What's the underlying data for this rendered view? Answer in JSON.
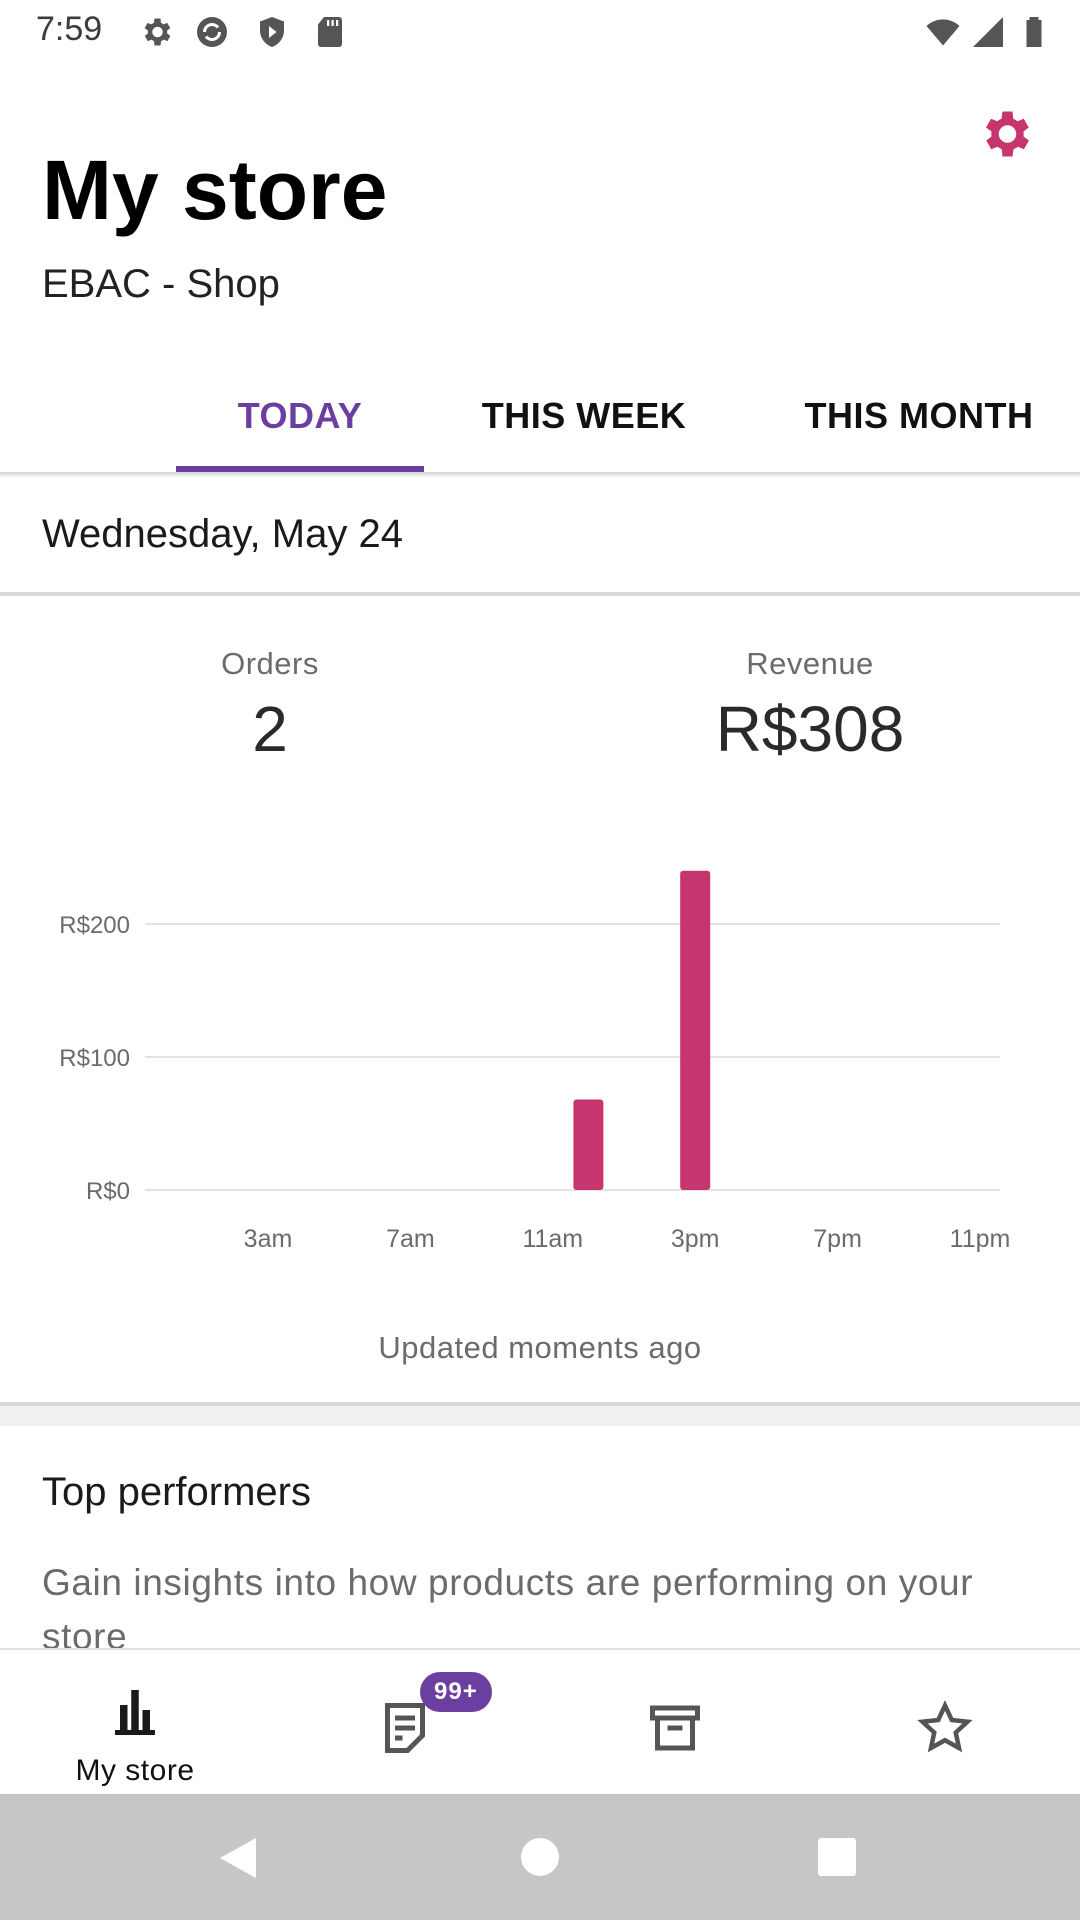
{
  "status_bar": {
    "time": "7:59",
    "left_icons": [
      "gear-icon",
      "sync-icon",
      "shield-play-icon",
      "sd-card-icon"
    ],
    "right_icons": [
      "wifi-icon",
      "signal-icon",
      "battery-icon"
    ]
  },
  "header": {
    "title": "My store",
    "store_name": "EBAC - Shop",
    "settings_icon": "gear-icon",
    "accent_color": "#c7356e"
  },
  "tabs": [
    {
      "label": "TODAY",
      "active": true
    },
    {
      "label": "THIS WEEK",
      "active": false
    },
    {
      "label": "THIS MONTH",
      "active": false
    }
  ],
  "active_tab_color": "#6a3fa0",
  "date": "Wednesday, May 24",
  "stats": {
    "orders_label": "Orders",
    "orders_value": "2",
    "revenue_label": "Revenue",
    "revenue_value": "R$308"
  },
  "chart_data": {
    "type": "bar",
    "x_ticks": [
      "3am",
      "7am",
      "11am",
      "3pm",
      "7pm",
      "11pm"
    ],
    "y_ticks": [
      "R$0",
      "R$100",
      "R$200"
    ],
    "ylim": [
      0,
      240
    ],
    "grid": true,
    "bar_color": "#c7356e",
    "bars": [
      {
        "hour": 12,
        "value": 68
      },
      {
        "hour": 15,
        "value": 240
      }
    ]
  },
  "updated_text": "Updated moments ago",
  "top_performers": {
    "title": "Top performers",
    "description": "Gain insights into how products are performing on your store"
  },
  "bottom_nav": {
    "items": [
      {
        "label": "My store",
        "icon": "bar-chart-icon",
        "active": true
      },
      {
        "icon": "orders-icon",
        "badge": "99+"
      },
      {
        "icon": "archive-icon"
      },
      {
        "icon": "star-icon"
      }
    ]
  },
  "system_nav": [
    "back-icon",
    "home-icon",
    "recents-icon"
  ]
}
